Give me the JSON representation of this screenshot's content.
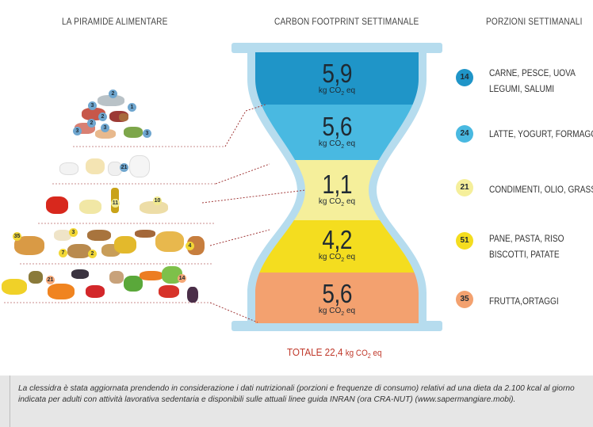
{
  "headers": {
    "left": "LA PIRAMIDE ALIMENTARE",
    "center": "CARBON FOOTPRINT SETTIMANALE",
    "right": "PORZIONI SETTIMANALI"
  },
  "unit": {
    "kg": "kg CO",
    "sub": "2",
    "eq": "eq"
  },
  "levels": [
    {
      "value": "5,9",
      "color": "#1f95c8",
      "badge": "14",
      "badge_color": "#1f95c8",
      "label_lines": [
        "CARNE, PESCE, UOVA",
        "LEGUMI, SALUMI"
      ]
    },
    {
      "value": "5,6",
      "color": "#49b9e1",
      "badge": "24",
      "badge_color": "#49b9e1",
      "label_lines": [
        "LATTE, YOGURT, FORMAGGI"
      ]
    },
    {
      "value": "1,1",
      "color": "#f5ef9b",
      "badge": "21",
      "badge_color": "#f5ef9b",
      "label_lines": [
        "CONDIMENTI, OLIO, GRASSI"
      ]
    },
    {
      "value": "4,2",
      "color": "#f4dd1f",
      "badge": "51",
      "badge_color": "#f4dd1f",
      "label_lines": [
        "PANE, PASTA, RISO",
        "BISCOTTI, PATATE"
      ]
    },
    {
      "value": "5,6",
      "color": "#f3a16f",
      "badge": "35",
      "badge_color": "#f3a16f",
      "label_lines": [
        "FRUTTA,ORTAGGI"
      ]
    }
  ],
  "total": {
    "label": "TOTALE 22,4",
    "unit": "kg CO",
    "sub": "2",
    "eq": "eq"
  },
  "pyramid_badges": [
    "2",
    "3",
    "2",
    "1",
    "3",
    "2",
    "3",
    "3",
    "21",
    "11",
    "10",
    "35",
    "3",
    "7",
    "2",
    "4",
    "21",
    "14"
  ],
  "footer": "La clessidra è stata aggiornata prendendo in considerazione i dati nutrizionali (porzioni e frequenze di consumo) relativi ad una dieta da 2.100 kcal al giorno indicata per adulti con attività lavorativa sedentaria e disponibili sulle attuali linee guida INRAN (ora CRA-NUT) (www.sapermangiare.mobi)."
}
